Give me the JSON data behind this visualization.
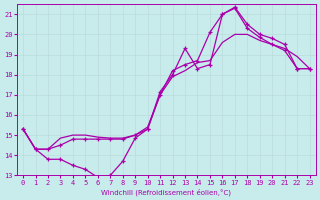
{
  "background_color": "#c8ecec",
  "grid_color": "#b8d8d8",
  "line_color": "#aa00aa",
  "xlim_min": -0.5,
  "xlim_max": 23.5,
  "ylim_min": 13,
  "ylim_max": 21.5,
  "xticks": [
    0,
    1,
    2,
    3,
    4,
    5,
    6,
    7,
    8,
    9,
    10,
    11,
    12,
    13,
    14,
    15,
    16,
    17,
    18,
    19,
    20,
    21,
    22,
    23
  ],
  "yticks": [
    13,
    14,
    15,
    16,
    17,
    18,
    19,
    20,
    21
  ],
  "xlabel": "Windchill (Refroidissement éolien,°C)",
  "curve_noisy_x": [
    0,
    1,
    2,
    3,
    4,
    5,
    6,
    7,
    8,
    9,
    10,
    11,
    12,
    13,
    14,
    15,
    16,
    17,
    18,
    19,
    20,
    21,
    22,
    23
  ],
  "curve_noisy_y": [
    15.3,
    14.3,
    13.8,
    13.8,
    13.5,
    13.3,
    12.9,
    13.0,
    13.7,
    14.85,
    15.3,
    17.15,
    18.0,
    19.3,
    18.3,
    18.5,
    21.0,
    21.3,
    20.3,
    19.85,
    19.5,
    19.2,
    18.3,
    18.3
  ],
  "curve_upper_x": [
    0,
    1,
    2,
    3,
    4,
    5,
    6,
    7,
    8,
    9,
    10,
    11,
    12,
    13,
    14,
    15,
    16,
    17,
    18,
    19,
    20,
    21,
    22,
    23
  ],
  "curve_upper_y": [
    15.3,
    14.3,
    14.3,
    14.5,
    14.8,
    14.8,
    14.8,
    14.8,
    14.8,
    15.0,
    15.3,
    17.0,
    18.2,
    18.5,
    18.7,
    20.1,
    21.0,
    21.35,
    20.5,
    20.0,
    19.8,
    19.5,
    18.3,
    18.3
  ],
  "curve_lower_x": [
    0,
    1,
    2,
    3,
    4,
    5,
    6,
    7,
    8,
    9,
    10,
    11,
    12,
    13,
    14,
    15,
    16,
    17,
    18,
    19,
    20,
    21,
    22,
    23
  ],
  "curve_lower_y": [
    15.3,
    14.3,
    14.3,
    14.85,
    15.0,
    15.0,
    14.9,
    14.85,
    14.85,
    15.0,
    15.4,
    17.0,
    17.9,
    18.2,
    18.6,
    18.7,
    19.6,
    20.0,
    20.0,
    19.7,
    19.5,
    19.3,
    18.9,
    18.3
  ]
}
